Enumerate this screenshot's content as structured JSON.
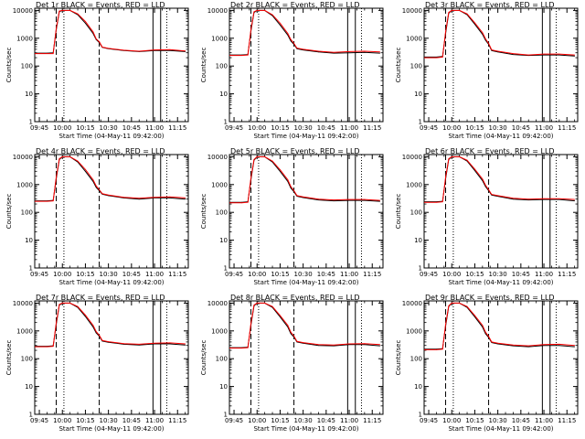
{
  "figure": {
    "xlabel": "Start Time (04-May-11 09:42:00)",
    "ylabel": "Counts/sec",
    "x_tick_labels": [
      "09:45",
      "10:00",
      "10:15",
      "10:30",
      "10:45",
      "11:00",
      "11:15"
    ],
    "y_tick_labels": [
      "1",
      "10",
      "100",
      "1000",
      "10000"
    ]
  },
  "colors": {
    "events": "#000000",
    "lld": "#ff0000",
    "background": "#ffffff"
  },
  "chart_data": [
    {
      "type": "line",
      "title": "Det 1r BLACK = Events, RED = LLD",
      "xlabel": "Start Time (04-May-11 09:42:00)",
      "ylabel": "Counts/sec",
      "y_scale": "log",
      "ylim": [
        1,
        12000
      ],
      "xlim": [
        "09:42",
        "11:22"
      ],
      "x": [
        "09:42",
        "09:50",
        "09:54",
        "09:56",
        "09:58",
        "10:00",
        "10:05",
        "10:10",
        "10:15",
        "10:20",
        "10:22",
        "10:24",
        "10:26",
        "10:30",
        "10:40",
        "10:50",
        "11:00",
        "11:10",
        "11:20"
      ],
      "series": [
        {
          "name": "Events",
          "color": "#000000",
          "values": [
            290,
            290,
            300,
            2000,
            9000,
            10000,
            10000,
            7000,
            3500,
            1500,
            900,
            700,
            470,
            420,
            360,
            330,
            360,
            360,
            330
          ]
        },
        {
          "name": "LLD",
          "color": "#ff0000",
          "values": [
            280,
            280,
            280,
            2200,
            9500,
            10000,
            10000,
            7500,
            4000,
            1700,
            950,
            750,
            480,
            430,
            370,
            340,
            380,
            390,
            350
          ]
        }
      ],
      "vlines_dashed": [
        "09:56",
        "10:24"
      ],
      "vlines_solid": [
        "10:59",
        "11:04"
      ],
      "vlines_dotted": [
        "10:01",
        "11:08"
      ]
    },
    {
      "type": "line",
      "title": "Det 2r BLACK = Events, RED = LLD",
      "xlabel": "Start Time (04-May-11 09:42:00)",
      "ylabel": "Counts/sec",
      "y_scale": "log",
      "ylim": [
        1,
        12000
      ],
      "xlim": [
        "09:42",
        "11:22"
      ],
      "x": [
        "09:42",
        "09:50",
        "09:54",
        "09:56",
        "09:58",
        "10:00",
        "10:05",
        "10:10",
        "10:15",
        "10:20",
        "10:22",
        "10:24",
        "10:26",
        "10:30",
        "10:40",
        "10:50",
        "11:00",
        "11:10",
        "11:20"
      ],
      "series": [
        {
          "name": "Events",
          "color": "#000000",
          "values": [
            250,
            250,
            260,
            1800,
            8500,
            10000,
            10000,
            6500,
            3000,
            1300,
            800,
            600,
            420,
            380,
            320,
            290,
            300,
            310,
            290
          ]
        },
        {
          "name": "LLD",
          "color": "#ff0000",
          "values": [
            240,
            240,
            250,
            2000,
            9000,
            10000,
            10000,
            7000,
            3500,
            1500,
            900,
            650,
            440,
            400,
            340,
            310,
            330,
            340,
            320
          ]
        }
      ],
      "vlines_dashed": [
        "09:56",
        "10:24"
      ],
      "vlines_solid": [
        "10:59",
        "11:04"
      ],
      "vlines_dotted": [
        "10:01",
        "11:08"
      ]
    },
    {
      "type": "line",
      "title": "Det 3r BLACK = Events, RED = LLD",
      "xlabel": "Start Time (04-May-11 09:42:00)",
      "ylabel": "Counts/sec",
      "y_scale": "log",
      "ylim": [
        1,
        12000
      ],
      "xlim": [
        "09:42",
        "11:22"
      ],
      "x": [
        "09:42",
        "09:50",
        "09:54",
        "09:56",
        "09:58",
        "10:00",
        "10:05",
        "10:10",
        "10:15",
        "10:20",
        "10:22",
        "10:24",
        "10:26",
        "10:30",
        "10:40",
        "10:50",
        "11:00",
        "11:10",
        "11:20"
      ],
      "series": [
        {
          "name": "Events",
          "color": "#000000",
          "values": [
            210,
            210,
            220,
            1500,
            8000,
            10000,
            10000,
            7000,
            3200,
            1400,
            850,
            600,
            360,
            320,
            260,
            240,
            250,
            250,
            230
          ]
        },
        {
          "name": "LLD",
          "color": "#ff0000",
          "values": [
            200,
            200,
            210,
            1700,
            8500,
            10000,
            10000,
            7500,
            3600,
            1600,
            950,
            650,
            380,
            340,
            280,
            250,
            270,
            270,
            250
          ]
        }
      ],
      "vlines_dashed": [
        "09:56",
        "10:24"
      ],
      "vlines_solid": [
        "10:59",
        "11:04"
      ],
      "vlines_dotted": [
        "10:01",
        "11:08"
      ]
    },
    {
      "type": "line",
      "title": "Det 4r BLACK = Events, RED = LLD",
      "xlabel": "Start Time (04-May-11 09:42:00)",
      "ylabel": "Counts/sec",
      "y_scale": "log",
      "ylim": [
        1,
        12000
      ],
      "xlim": [
        "09:42",
        "11:22"
      ],
      "x": [
        "09:42",
        "09:50",
        "09:54",
        "09:56",
        "09:58",
        "10:00",
        "10:05",
        "10:10",
        "10:15",
        "10:20",
        "10:22",
        "10:24",
        "10:26",
        "10:30",
        "10:40",
        "10:50",
        "11:00",
        "11:10",
        "11:20"
      ],
      "series": [
        {
          "name": "Events",
          "color": "#000000",
          "values": [
            260,
            260,
            270,
            1600,
            8000,
            10000,
            10000,
            6500,
            3000,
            1300,
            800,
            600,
            450,
            400,
            330,
            300,
            330,
            330,
            300
          ]
        },
        {
          "name": "LLD",
          "color": "#ff0000",
          "values": [
            250,
            250,
            260,
            1800,
            8500,
            10000,
            10000,
            7000,
            3500,
            1500,
            900,
            650,
            470,
            420,
            350,
            320,
            350,
            360,
            330
          ]
        }
      ],
      "vlines_dashed": [
        "09:56",
        "10:24"
      ],
      "vlines_solid": [
        "10:59",
        "11:04"
      ],
      "vlines_dotted": [
        "10:01",
        "11:08"
      ]
    },
    {
      "type": "line",
      "title": "Det 5r BLACK = Events, RED = LLD",
      "xlabel": "Start Time (04-May-11 09:42:00)",
      "ylabel": "Counts/sec",
      "y_scale": "log",
      "ylim": [
        1,
        12000
      ],
      "xlim": [
        "09:42",
        "11:22"
      ],
      "x": [
        "09:42",
        "09:50",
        "09:54",
        "09:56",
        "09:58",
        "10:00",
        "10:05",
        "10:10",
        "10:15",
        "10:20",
        "10:22",
        "10:24",
        "10:26",
        "10:30",
        "10:40",
        "10:50",
        "11:00",
        "11:10",
        "11:20"
      ],
      "series": [
        {
          "name": "Events",
          "color": "#000000",
          "values": [
            230,
            230,
            240,
            1500,
            7500,
            10000,
            10000,
            6500,
            3000,
            1300,
            750,
            550,
            380,
            340,
            280,
            260,
            270,
            270,
            250
          ]
        },
        {
          "name": "LLD",
          "color": "#ff0000",
          "values": [
            220,
            220,
            230,
            1700,
            8000,
            10000,
            10000,
            7000,
            3400,
            1500,
            850,
            600,
            400,
            360,
            300,
            280,
            290,
            290,
            270
          ]
        }
      ],
      "vlines_dashed": [
        "09:56",
        "10:24"
      ],
      "vlines_solid": [
        "10:59",
        "11:04"
      ],
      "vlines_dotted": [
        "10:01",
        "11:08"
      ]
    },
    {
      "type": "line",
      "title": "Det 6r BLACK = Events, RED = LLD",
      "xlabel": "Start Time (04-May-11 09:42:00)",
      "ylabel": "Counts/sec",
      "y_scale": "log",
      "ylim": [
        1,
        12000
      ],
      "xlim": [
        "09:42",
        "11:22"
      ],
      "x": [
        "09:42",
        "09:50",
        "09:54",
        "09:56",
        "09:58",
        "10:00",
        "10:05",
        "10:10",
        "10:15",
        "10:20",
        "10:22",
        "10:24",
        "10:26",
        "10:30",
        "10:40",
        "10:50",
        "11:00",
        "11:10",
        "11:20"
      ],
      "series": [
        {
          "name": "Events",
          "color": "#000000",
          "values": [
            240,
            240,
            250,
            1600,
            8000,
            10000,
            10000,
            7000,
            3200,
            1400,
            850,
            600,
            420,
            380,
            300,
            280,
            290,
            290,
            260
          ]
        },
        {
          "name": "LLD",
          "color": "#ff0000",
          "values": [
            230,
            230,
            240,
            1800,
            8500,
            10000,
            10000,
            7500,
            3600,
            1600,
            950,
            650,
            440,
            400,
            320,
            300,
            310,
            310,
            290
          ]
        }
      ],
      "vlines_dashed": [
        "09:56",
        "10:24"
      ],
      "vlines_solid": [
        "10:59",
        "11:04"
      ],
      "vlines_dotted": [
        "10:01",
        "11:08"
      ]
    },
    {
      "type": "line",
      "title": "Det 7r BLACK = Events, RED = LLD",
      "xlabel": "Start Time (04-May-11 09:42:00)",
      "ylabel": "Counts/sec",
      "y_scale": "log",
      "ylim": [
        1,
        12000
      ],
      "xlim": [
        "09:42",
        "11:22"
      ],
      "x": [
        "09:42",
        "09:50",
        "09:54",
        "09:56",
        "09:58",
        "10:00",
        "10:05",
        "10:10",
        "10:15",
        "10:20",
        "10:22",
        "10:24",
        "10:26",
        "10:30",
        "10:40",
        "10:50",
        "11:00",
        "11:10",
        "11:20"
      ],
      "series": [
        {
          "name": "Events",
          "color": "#000000",
          "values": [
            280,
            280,
            290,
            1700,
            8500,
            10000,
            10000,
            7000,
            3300,
            1400,
            850,
            650,
            430,
            390,
            330,
            310,
            340,
            340,
            310
          ]
        },
        {
          "name": "LLD",
          "color": "#ff0000",
          "values": [
            270,
            270,
            280,
            1900,
            9000,
            10000,
            10000,
            7500,
            3700,
            1600,
            950,
            700,
            450,
            410,
            350,
            330,
            360,
            370,
            340
          ]
        }
      ],
      "vlines_dashed": [
        "09:56",
        "10:24"
      ],
      "vlines_solid": [
        "10:59",
        "11:04"
      ],
      "vlines_dotted": [
        "10:01",
        "11:08"
      ]
    },
    {
      "type": "line",
      "title": "Det 8r BLACK = Events, RED = LLD",
      "xlabel": "Start Time (04-May-11 09:42:00)",
      "ylabel": "Counts/sec",
      "y_scale": "log",
      "ylim": [
        1,
        12000
      ],
      "xlim": [
        "09:42",
        "11:22"
      ],
      "x": [
        "09:42",
        "09:50",
        "09:54",
        "09:56",
        "09:58",
        "10:00",
        "10:05",
        "10:10",
        "10:15",
        "10:20",
        "10:22",
        "10:24",
        "10:26",
        "10:30",
        "10:40",
        "10:50",
        "11:00",
        "11:10",
        "11:20"
      ],
      "series": [
        {
          "name": "Events",
          "color": "#000000",
          "values": [
            250,
            250,
            260,
            1600,
            8000,
            10000,
            10000,
            7000,
            3200,
            1400,
            800,
            600,
            400,
            360,
            300,
            290,
            320,
            320,
            290
          ]
        },
        {
          "name": "LLD",
          "color": "#ff0000",
          "values": [
            240,
            240,
            250,
            1800,
            8500,
            10000,
            10000,
            7500,
            3600,
            1600,
            900,
            650,
            420,
            380,
            320,
            310,
            340,
            350,
            320
          ]
        }
      ],
      "vlines_dashed": [
        "09:56",
        "10:24"
      ],
      "vlines_solid": [
        "10:59",
        "11:04"
      ],
      "vlines_dotted": [
        "10:01",
        "11:08"
      ]
    },
    {
      "type": "line",
      "title": "Det 9r BLACK = Events, RED = LLD",
      "xlabel": "Start Time (04-May-11 09:42:00)",
      "ylabel": "Counts/sec",
      "y_scale": "log",
      "ylim": [
        1,
        12000
      ],
      "xlim": [
        "09:42",
        "11:22"
      ],
      "x": [
        "09:42",
        "09:50",
        "09:54",
        "09:56",
        "09:58",
        "10:00",
        "10:05",
        "10:10",
        "10:15",
        "10:20",
        "10:22",
        "10:24",
        "10:26",
        "10:30",
        "10:40",
        "10:50",
        "11:00",
        "11:10",
        "11:20"
      ],
      "series": [
        {
          "name": "Events",
          "color": "#000000",
          "values": [
            220,
            220,
            230,
            1500,
            7500,
            10000,
            10000,
            7000,
            3200,
            1400,
            800,
            580,
            380,
            340,
            290,
            270,
            300,
            300,
            270
          ]
        },
        {
          "name": "LLD",
          "color": "#ff0000",
          "values": [
            210,
            210,
            220,
            1700,
            8000,
            10000,
            10000,
            7500,
            3600,
            1600,
            900,
            630,
            400,
            360,
            310,
            290,
            320,
            330,
            300
          ]
        }
      ],
      "vlines_dashed": [
        "09:56",
        "10:24"
      ],
      "vlines_solid": [
        "10:59",
        "11:04"
      ],
      "vlines_dotted": [
        "10:01",
        "11:08"
      ]
    }
  ]
}
